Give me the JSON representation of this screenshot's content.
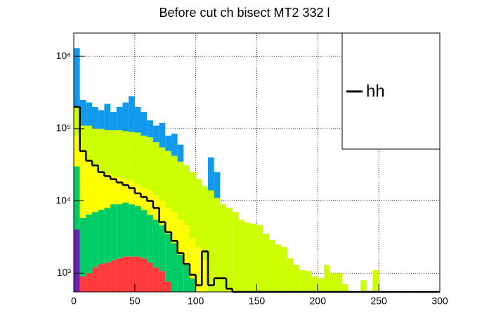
{
  "chart_data": {
    "type": "histogram",
    "title": "Before cut ch bisect MT2 332 l",
    "bins": [
      0,
      5,
      10,
      15,
      20,
      25,
      30,
      35,
      40,
      45,
      50,
      55,
      60,
      65,
      70,
      75,
      80,
      85,
      90,
      95,
      100,
      105,
      110,
      115,
      120,
      125,
      130,
      135,
      140,
      145,
      150,
      155,
      160,
      165,
      170,
      175,
      180,
      185,
      190,
      195,
      200,
      205,
      210,
      215,
      220,
      225,
      230,
      235,
      240,
      245,
      250,
      255,
      260,
      265,
      270,
      275,
      280,
      285,
      290,
      295,
      300
    ],
    "series": [
      {
        "color": "#6b1fb5",
        "histtype": "stepfilled",
        "values": [
          4000,
          0,
          0,
          0,
          0,
          0,
          0,
          0,
          0,
          0,
          0,
          0,
          0,
          0,
          0,
          0,
          0,
          0,
          0,
          0,
          0,
          0,
          0,
          0,
          0,
          0,
          0,
          0,
          0,
          0,
          0,
          0,
          0,
          0,
          0,
          0,
          0,
          0,
          0,
          0,
          0,
          0,
          0,
          0,
          0,
          0,
          0,
          0,
          0,
          0,
          0,
          0,
          0,
          0,
          0,
          0,
          0,
          0,
          0,
          0
        ]
      },
      {
        "color": "#ff3a3a",
        "histtype": "stepfilled",
        "values": [
          0,
          900,
          1000,
          1200,
          1340,
          1400,
          1500,
          1600,
          1700,
          1700,
          1700,
          1600,
          1400,
          1200,
          1070,
          760,
          0,
          0,
          0,
          0,
          0,
          0,
          0,
          0,
          0,
          0,
          0,
          0,
          0,
          0,
          0,
          0,
          0,
          0,
          0,
          0,
          0,
          0,
          0,
          0,
          0,
          0,
          0,
          0,
          0,
          0,
          0,
          0,
          0,
          0,
          0,
          0,
          0,
          0,
          0,
          0,
          0,
          0,
          0,
          0
        ]
      },
      {
        "color": "#00cc66",
        "histtype": "stepfilled",
        "values": [
          26000,
          4900,
          5500,
          5800,
          6160,
          6600,
          7500,
          7400,
          7800,
          7300,
          6800,
          5900,
          5000,
          4300,
          3530,
          2740,
          2600,
          1800,
          1300,
          850,
          0,
          0,
          0,
          0,
          0,
          0,
          0,
          0,
          0,
          0,
          0,
          0,
          0,
          0,
          0,
          0,
          0,
          0,
          0,
          0,
          0,
          0,
          0,
          0,
          0,
          0,
          0,
          0,
          0,
          0,
          0,
          0,
          0,
          0,
          0,
          0,
          0,
          0,
          0,
          0
        ]
      },
      {
        "color": "#ffff00",
        "histtype": "stepfilled",
        "values": [
          50000,
          43200,
          28500,
          23000,
          17500,
          16000,
          13000,
          12000,
          10500,
          10000,
          8500,
          7500,
          7600,
          6500,
          5400,
          4500,
          4400,
          3700,
          3300,
          2150,
          2300,
          1500,
          0,
          0,
          0,
          0,
          0,
          0,
          0,
          0,
          0,
          0,
          0,
          0,
          0,
          0,
          0,
          0,
          0,
          0,
          0,
          0,
          0,
          0,
          0,
          0,
          0,
          0,
          0,
          0,
          0,
          0,
          0,
          0,
          0,
          0,
          0,
          0,
          0,
          0
        ]
      },
      {
        "color": "#ccff00",
        "histtype": "stepfilled",
        "values": [
          120000,
          61000,
          75000,
          70000,
          75000,
          71000,
          73000,
          74000,
          72000,
          71000,
          71000,
          65000,
          62000,
          53000,
          45000,
          41000,
          35000,
          29500,
          26400,
          22000,
          17700,
          14500,
          14000,
          11000,
          9000,
          8000,
          7000,
          5500,
          5000,
          4800,
          4600,
          3500,
          2900,
          2500,
          2300,
          1600,
          1300,
          1100,
          1070,
          900,
          850,
          1300,
          1000,
          1000,
          700,
          0,
          0,
          800,
          0,
          1100,
          0,
          0,
          0,
          0,
          0,
          0,
          0,
          0,
          0,
          0
        ]
      },
      {
        "color": "#1199ee",
        "histtype": "stepfilled",
        "values": [
          1100000,
          140000,
          120000,
          100000,
          80000,
          125000,
          75000,
          105000,
          138000,
          190000,
          112000,
          90000,
          54000,
          45000,
          65000,
          31000,
          43000,
          25000,
          0,
          0,
          0,
          0,
          26000,
          14000,
          0,
          0,
          0,
          0,
          0,
          0,
          0,
          0,
          0,
          0,
          0,
          0,
          0,
          0,
          0,
          0,
          0,
          0,
          0,
          0,
          0,
          0,
          0,
          0,
          0,
          0,
          0,
          0,
          0,
          0,
          0,
          0,
          0,
          0,
          0,
          0
        ]
      },
      {
        "name": "hh",
        "color": "#000000",
        "histtype": "step",
        "values": [
          200000,
          49000,
          36000,
          31000,
          25000,
          22000,
          20000,
          18000,
          16500,
          15000,
          12700,
          11300,
          10000,
          8000,
          5100,
          3700,
          2800,
          1900,
          1340,
          950,
          680,
          2000,
          680,
          850,
          850,
          610,
          0,
          0,
          0,
          0,
          0,
          0,
          0,
          0,
          0,
          0,
          0,
          0,
          0,
          0,
          0,
          0,
          0,
          0,
          0,
          0,
          0,
          0,
          0,
          0,
          0,
          0,
          0,
          0,
          0,
          0,
          0,
          0,
          0,
          0
        ]
      }
    ],
    "xlim": [
      0,
      300
    ],
    "xticks": [
      0,
      50,
      100,
      150,
      200,
      250,
      300
    ],
    "ylim": [
      550,
      2100000
    ],
    "yscale": "log",
    "yticks": [
      {
        "value": 1000,
        "label": "10³"
      },
      {
        "value": 10000,
        "label": "10⁴"
      },
      {
        "value": 100000,
        "label": "10⁵"
      },
      {
        "value": 1000000,
        "label": "10⁶"
      }
    ],
    "grid": true,
    "legend": "upper right"
  }
}
